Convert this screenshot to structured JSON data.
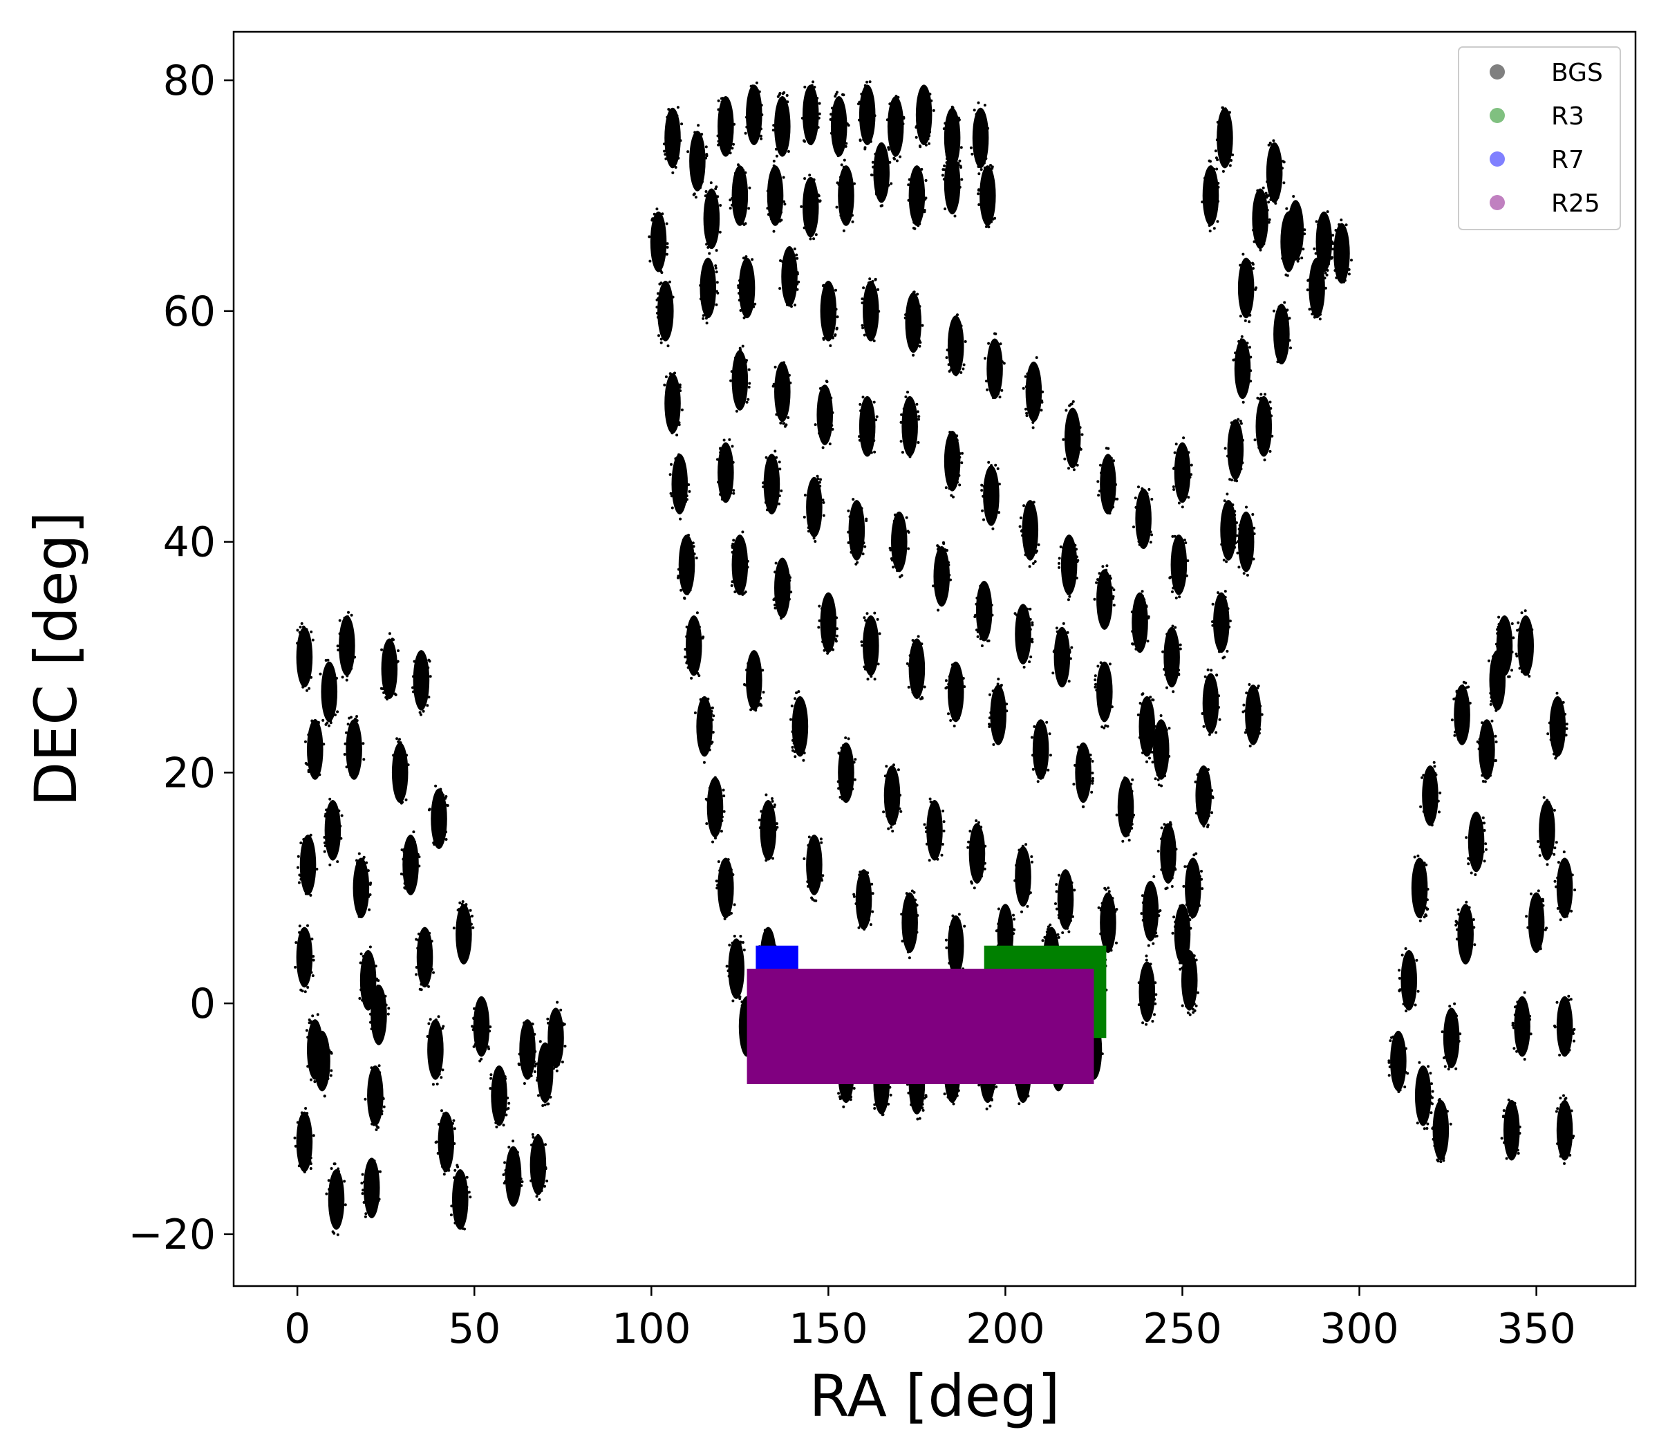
{
  "chart_data": {
    "type": "scatter",
    "xlabel": "RA [deg]",
    "ylabel": "DEC [deg]",
    "xlim": [
      -18,
      378
    ],
    "ylim": [
      -24.5,
      84.2
    ],
    "xticks": [
      0,
      50,
      100,
      150,
      200,
      250,
      300,
      350
    ],
    "yticks": [
      -20,
      0,
      20,
      40,
      60,
      80
    ],
    "xtick_labels": [
      "0",
      "50",
      "100",
      "150",
      "200",
      "250",
      "300",
      "350"
    ],
    "ytick_labels": [
      "−20",
      "0",
      "20",
      "40",
      "60",
      "80"
    ],
    "grid": false,
    "legend_position": "top-right",
    "legend": [
      {
        "label": "BGS",
        "color": "#808080"
      },
      {
        "label": "R3",
        "color": "#80c080"
      },
      {
        "label": "R7",
        "color": "#8080ff"
      },
      {
        "label": "R25",
        "color": "#c080c0"
      }
    ],
    "series": [
      {
        "name": "BGS",
        "kind": "point_clusters",
        "color": "#000000",
        "clusters": [
          [
            2,
            30
          ],
          [
            5,
            22
          ],
          [
            3,
            12
          ],
          [
            2,
            4
          ],
          [
            5,
            -4
          ],
          [
            2,
            -12
          ],
          [
            9,
            27
          ],
          [
            10,
            15
          ],
          [
            11,
            -17
          ],
          [
            14,
            31
          ],
          [
            16,
            22
          ],
          [
            18,
            10
          ],
          [
            20,
            2
          ],
          [
            22,
            -8
          ],
          [
            21,
            -16
          ],
          [
            26,
            29
          ],
          [
            29,
            20
          ],
          [
            32,
            12
          ],
          [
            36,
            4
          ],
          [
            39,
            -4
          ],
          [
            42,
            -12
          ],
          [
            46,
            -17
          ],
          [
            35,
            28
          ],
          [
            40,
            16
          ],
          [
            47,
            6
          ],
          [
            52,
            -2
          ],
          [
            57,
            -8
          ],
          [
            61,
            -15
          ],
          [
            65,
            -4
          ],
          [
            70,
            -6
          ],
          [
            73,
            -3
          ],
          [
            68,
            -14
          ],
          [
            23,
            -1
          ],
          [
            7,
            -5
          ],
          [
            102,
            66
          ],
          [
            104,
            60
          ],
          [
            106,
            52
          ],
          [
            108,
            45
          ],
          [
            110,
            38
          ],
          [
            112,
            31
          ],
          [
            115,
            24
          ],
          [
            118,
            17
          ],
          [
            121,
            10
          ],
          [
            124,
            3
          ],
          [
            127,
            -2
          ],
          [
            106,
            75
          ],
          [
            113,
            73
          ],
          [
            121,
            76
          ],
          [
            129,
            77
          ],
          [
            137,
            76
          ],
          [
            145,
            77
          ],
          [
            153,
            76
          ],
          [
            161,
            77
          ],
          [
            169,
            76
          ],
          [
            177,
            77
          ],
          [
            185,
            75
          ],
          [
            193,
            75
          ],
          [
            117,
            68
          ],
          [
            125,
            70
          ],
          [
            135,
            70
          ],
          [
            145,
            69
          ],
          [
            155,
            70
          ],
          [
            165,
            72
          ],
          [
            175,
            70
          ],
          [
            185,
            71
          ],
          [
            195,
            70
          ],
          [
            116,
            62
          ],
          [
            127,
            62
          ],
          [
            139,
            63
          ],
          [
            150,
            60
          ],
          [
            162,
            60
          ],
          [
            174,
            59
          ],
          [
            186,
            57
          ],
          [
            197,
            55
          ],
          [
            208,
            53
          ],
          [
            219,
            49
          ],
          [
            229,
            45
          ],
          [
            239,
            42
          ],
          [
            125,
            54
          ],
          [
            137,
            53
          ],
          [
            149,
            51
          ],
          [
            161,
            50
          ],
          [
            173,
            50
          ],
          [
            185,
            47
          ],
          [
            196,
            44
          ],
          [
            207,
            41
          ],
          [
            218,
            38
          ],
          [
            228,
            35
          ],
          [
            238,
            33
          ],
          [
            121,
            46
          ],
          [
            134,
            45
          ],
          [
            146,
            43
          ],
          [
            158,
            41
          ],
          [
            170,
            40
          ],
          [
            182,
            37
          ],
          [
            194,
            34
          ],
          [
            205,
            32
          ],
          [
            216,
            30
          ],
          [
            228,
            27
          ],
          [
            240,
            24
          ],
          [
            125,
            38
          ],
          [
            137,
            36
          ],
          [
            150,
            33
          ],
          [
            162,
            31
          ],
          [
            175,
            29
          ],
          [
            186,
            27
          ],
          [
            198,
            25
          ],
          [
            210,
            22
          ],
          [
            222,
            20
          ],
          [
            234,
            17
          ],
          [
            246,
            13
          ],
          [
            250,
            6
          ],
          [
            252,
            2
          ],
          [
            129,
            28
          ],
          [
            142,
            24
          ],
          [
            155,
            20
          ],
          [
            168,
            18
          ],
          [
            180,
            15
          ],
          [
            192,
            13
          ],
          [
            205,
            11
          ],
          [
            217,
            9
          ],
          [
            229,
            7
          ],
          [
            241,
            8
          ],
          [
            133,
            15
          ],
          [
            146,
            12
          ],
          [
            160,
            9
          ],
          [
            173,
            7
          ],
          [
            186,
            5
          ],
          [
            200,
            6
          ],
          [
            213,
            4
          ],
          [
            226,
            2
          ],
          [
            240,
            1
          ],
          [
            133,
            4
          ],
          [
            145,
            -4
          ],
          [
            155,
            -6
          ],
          [
            165,
            -7
          ],
          [
            175,
            -7
          ],
          [
            185,
            -6
          ],
          [
            195,
            -6
          ],
          [
            205,
            -6
          ],
          [
            215,
            -5
          ],
          [
            225,
            -4
          ],
          [
            253,
            10
          ],
          [
            256,
            18
          ],
          [
            258,
            26
          ],
          [
            261,
            33
          ],
          [
            263,
            41
          ],
          [
            265,
            48
          ],
          [
            267,
            55
          ],
          [
            268,
            62
          ],
          [
            272,
            68
          ],
          [
            276,
            72
          ],
          [
            282,
            67
          ],
          [
            288,
            62
          ],
          [
            262,
            75
          ],
          [
            258,
            70
          ],
          [
            290,
            66
          ],
          [
            295,
            65
          ],
          [
            244,
            22
          ],
          [
            247,
            30
          ],
          [
            249,
            38
          ],
          [
            250,
            46
          ],
          [
            270,
            25
          ],
          [
            268,
            40
          ],
          [
            273,
            50
          ],
          [
            278,
            58
          ],
          [
            280,
            66
          ],
          [
            311,
            -5
          ],
          [
            314,
            2
          ],
          [
            317,
            10
          ],
          [
            320,
            18
          ],
          [
            323,
            -11
          ],
          [
            326,
            -3
          ],
          [
            330,
            6
          ],
          [
            333,
            14
          ],
          [
            336,
            22
          ],
          [
            339,
            28
          ],
          [
            343,
            -11
          ],
          [
            346,
            -2
          ],
          [
            350,
            7
          ],
          [
            353,
            15
          ],
          [
            356,
            24
          ],
          [
            358,
            -11
          ],
          [
            358,
            -2
          ],
          [
            358,
            10
          ],
          [
            347,
            31
          ],
          [
            341,
            31
          ],
          [
            329,
            25
          ],
          [
            318,
            -8
          ]
        ]
      },
      {
        "name": "R3",
        "kind": "region",
        "color": "#008000",
        "ra": [
          194,
          228.5
        ],
        "dec": [
          -3,
          5
        ]
      },
      {
        "name": "R7",
        "kind": "region",
        "color": "#0000ff",
        "ra": [
          129.5,
          141.5
        ],
        "dec": [
          0,
          5
        ]
      },
      {
        "name": "R25",
        "kind": "region",
        "color": "#800080",
        "ra": [
          127,
          225
        ],
        "dec": [
          -7,
          3
        ]
      }
    ]
  }
}
